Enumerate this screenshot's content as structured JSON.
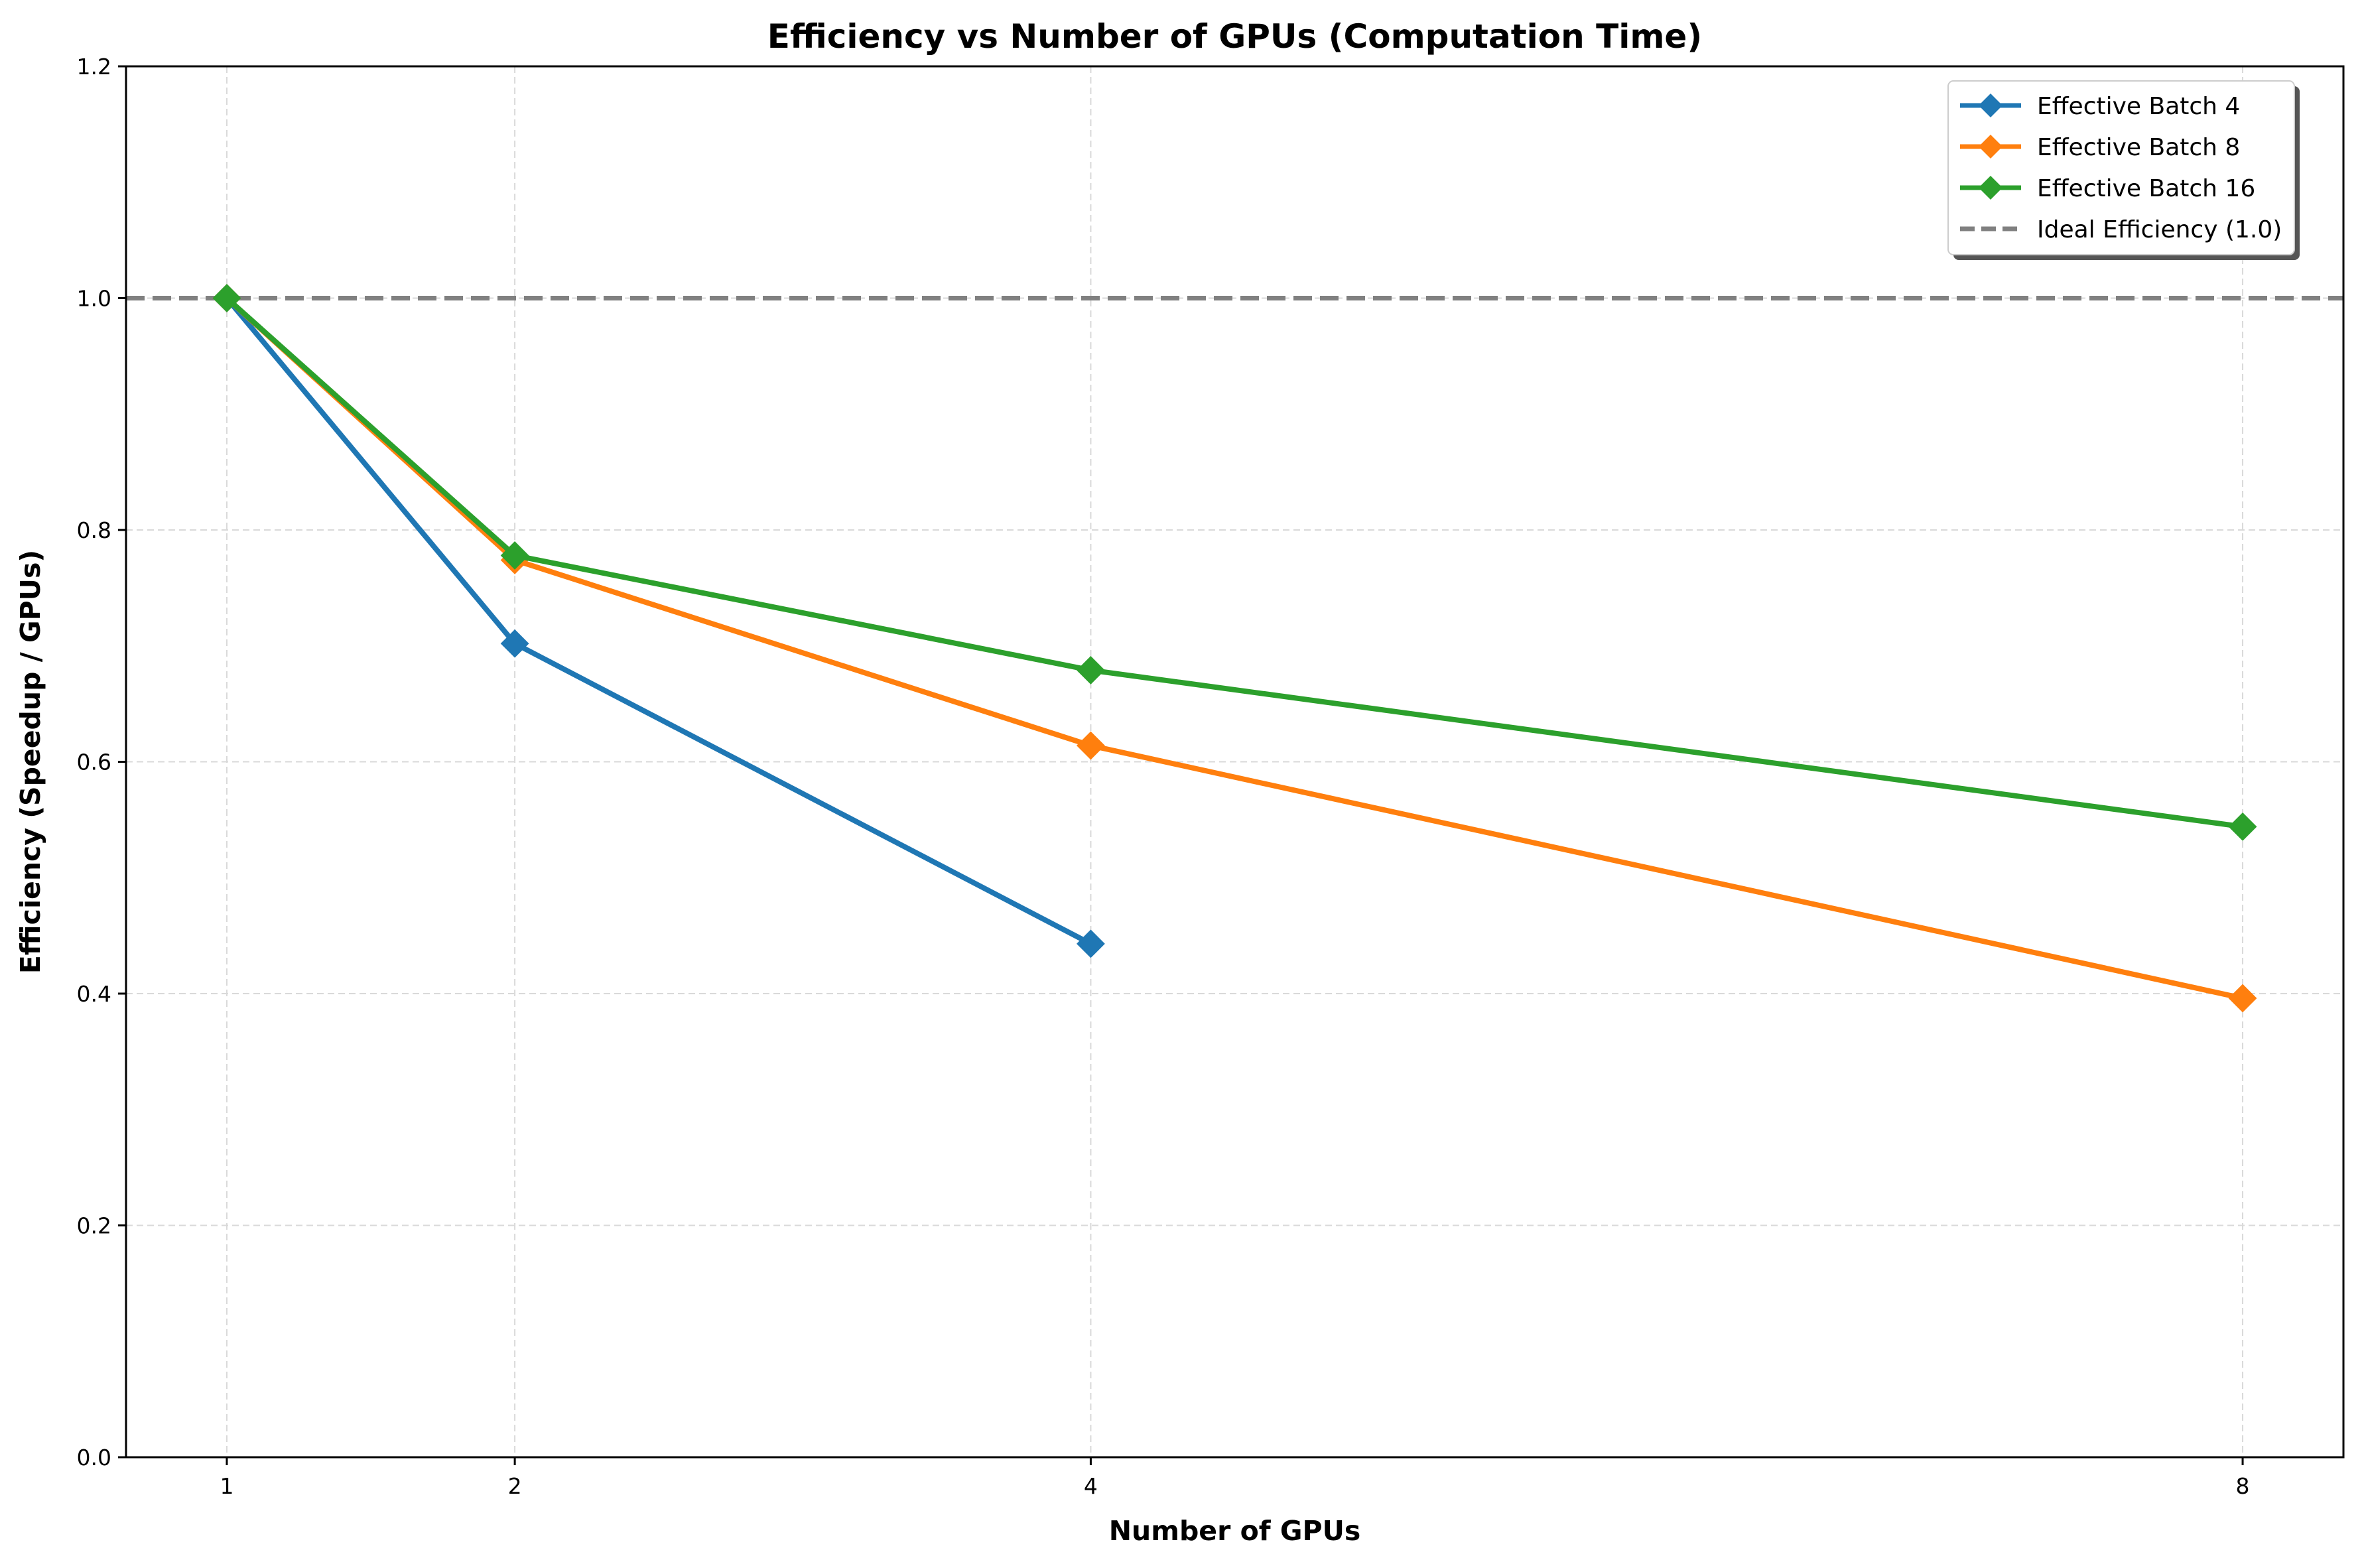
{
  "chart_data": {
    "type": "line",
    "title": "Efficiency vs Number of GPUs (Computation Time)",
    "xlabel": "Number of GPUs",
    "ylabel": "Efficiency (Speedup / GPUs)",
    "xlim": [
      0.65,
      8.35
    ],
    "ylim": [
      0.0,
      1.2
    ],
    "xticks": [
      1,
      2,
      4,
      8
    ],
    "xtick_labels": [
      "1",
      "2",
      "4",
      "8"
    ],
    "yticks": [
      0.0,
      0.2,
      0.4,
      0.6,
      0.8,
      1.0,
      1.2
    ],
    "ytick_labels": [
      "0.0",
      "0.2",
      "0.4",
      "0.6",
      "0.8",
      "1.0",
      "1.2"
    ],
    "grid": true,
    "legend_position": "top-right",
    "series": [
      {
        "name": "Effective Batch 4",
        "color": "#1f77b4",
        "marker": "diamond",
        "x": [
          1,
          2,
          4
        ],
        "y": [
          1.0,
          0.702,
          0.443
        ]
      },
      {
        "name": "Effective Batch 8",
        "color": "#ff7f0e",
        "marker": "diamond",
        "x": [
          1,
          2,
          4,
          8
        ],
        "y": [
          1.0,
          0.774,
          0.614,
          0.396
        ]
      },
      {
        "name": "Effective Batch 16",
        "color": "#2ca02c",
        "marker": "diamond",
        "x": [
          1,
          2,
          4,
          8
        ],
        "y": [
          1.0,
          0.778,
          0.679,
          0.544
        ]
      }
    ],
    "reference_line": {
      "name": "Ideal Efficiency (1.0)",
      "y": 1.0,
      "color": "#808080",
      "style": "dashed"
    }
  }
}
